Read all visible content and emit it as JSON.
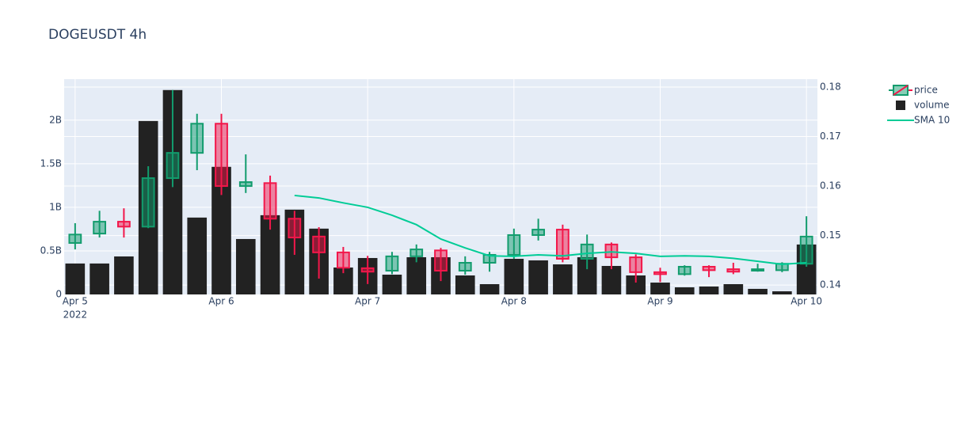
{
  "chart_data": {
    "type": "candlestick",
    "title": "DOGEUSDT 4h",
    "x": [
      0,
      4,
      8,
      12,
      16,
      20,
      24,
      28,
      32,
      36,
      40,
      44,
      48,
      52,
      56,
      60,
      64,
      68,
      72,
      76,
      80,
      84,
      88,
      92,
      96,
      100,
      104,
      108,
      112,
      116,
      120
    ],
    "xlim": [
      -1.8,
      121.8
    ],
    "xticks": [
      {
        "value": 0,
        "label": "Apr 5"
      },
      {
        "value": 24,
        "label": "Apr 6"
      },
      {
        "value": 48,
        "label": "Apr 7"
      },
      {
        "value": 72,
        "label": "Apr 8"
      },
      {
        "value": 96,
        "label": "Apr 9"
      },
      {
        "value": 120,
        "label": "Apr 10"
      }
    ],
    "x_year_label": "2022",
    "ylim": [
      0,
      2470000000
    ],
    "yticks": [
      0,
      {
        "value": 500000000,
        "label": "0.5B"
      },
      {
        "value": 1000000000,
        "label": "1B"
      },
      {
        "value": 1500000000,
        "label": "1.5B"
      },
      {
        "value": 2000000000,
        "label": "2B"
      }
    ],
    "y2lim": [
      0.1381,
      0.1816
    ],
    "y2ticks": [
      0.14,
      0.15,
      0.16,
      0.17,
      0.18
    ],
    "grid": true,
    "legend": "right",
    "series": [
      {
        "name": "price",
        "type": "candlestick",
        "axis": "y2",
        "increasing_color": "#129c6d",
        "decreasing_color": "#f2174a",
        "open": [
          0.1485,
          0.1504,
          0.1528,
          0.1518,
          0.1616,
          0.1667,
          0.1726,
          0.16,
          0.1606,
          0.1534,
          0.1498,
          0.1466,
          0.1434,
          0.1429,
          0.1458,
          0.147,
          0.1429,
          0.1445,
          0.1461,
          0.1501,
          0.1512,
          0.1453,
          0.1482,
          0.1456,
          0.1426,
          0.1422,
          0.1437,
          0.1432,
          0.1429,
          0.143,
          0.1443
        ],
        "high": [
          0.1525,
          0.155,
          0.1555,
          0.164,
          0.1794,
          0.1746,
          0.1746,
          0.1664,
          0.1621,
          0.155,
          0.1517,
          0.1477,
          0.1459,
          0.1467,
          0.1482,
          0.1475,
          0.1458,
          0.1467,
          0.1514,
          0.1534,
          0.1522,
          0.1502,
          0.1486,
          0.1462,
          0.1435,
          0.144,
          0.144,
          0.1445,
          0.1443,
          0.1446,
          0.1539
        ],
        "low": [
          0.1472,
          0.1496,
          0.1496,
          0.1515,
          0.1598,
          0.1632,
          0.1582,
          0.1586,
          0.1512,
          0.1461,
          0.1413,
          0.1424,
          0.1402,
          0.1422,
          0.1446,
          0.1408,
          0.1421,
          0.1427,
          0.1453,
          0.149,
          0.1446,
          0.1432,
          0.1432,
          0.1405,
          0.1406,
          0.1419,
          0.1416,
          0.1422,
          0.1427,
          0.1426,
          0.1437
        ],
        "close": [
          0.1502,
          0.1528,
          0.1518,
          0.1616,
          0.1667,
          0.1726,
          0.16,
          0.1608,
          0.1534,
          0.1496,
          0.1466,
          0.1435,
          0.1427,
          0.1458,
          0.1472,
          0.1429,
          0.1445,
          0.1461,
          0.1501,
          0.1512,
          0.1453,
          0.1482,
          0.1456,
          0.1426,
          0.1422,
          0.1437,
          0.143,
          0.1427,
          0.1432,
          0.1443,
          0.1498
        ]
      },
      {
        "name": "volume",
        "type": "bar",
        "color": "#222222",
        "values": [
          355000000,
          355000000,
          436000000,
          1990000000,
          2345000000,
          882000000,
          1464000000,
          636000000,
          909000000,
          973000000,
          755000000,
          309000000,
          418000000,
          227000000,
          427000000,
          427000000,
          218000000,
          118000000,
          409000000,
          391000000,
          345000000,
          427000000,
          327000000,
          218000000,
          136000000,
          82000000,
          91000000,
          118000000,
          64000000,
          36000000,
          573000000
        ]
      },
      {
        "name": "SMA 10",
        "type": "line",
        "axis": "y2",
        "color": "#00cc96",
        "values": [
          null,
          null,
          null,
          null,
          null,
          null,
          null,
          null,
          null,
          0.1581,
          0.1576,
          0.1566,
          0.1557,
          0.1541,
          0.1522,
          0.1493,
          0.1475,
          0.1459,
          0.1458,
          0.1461,
          0.1459,
          0.1464,
          0.1467,
          0.1464,
          0.1458,
          0.1459,
          0.1458,
          0.1454,
          0.1448,
          0.1442,
          0.1445
        ]
      }
    ]
  }
}
